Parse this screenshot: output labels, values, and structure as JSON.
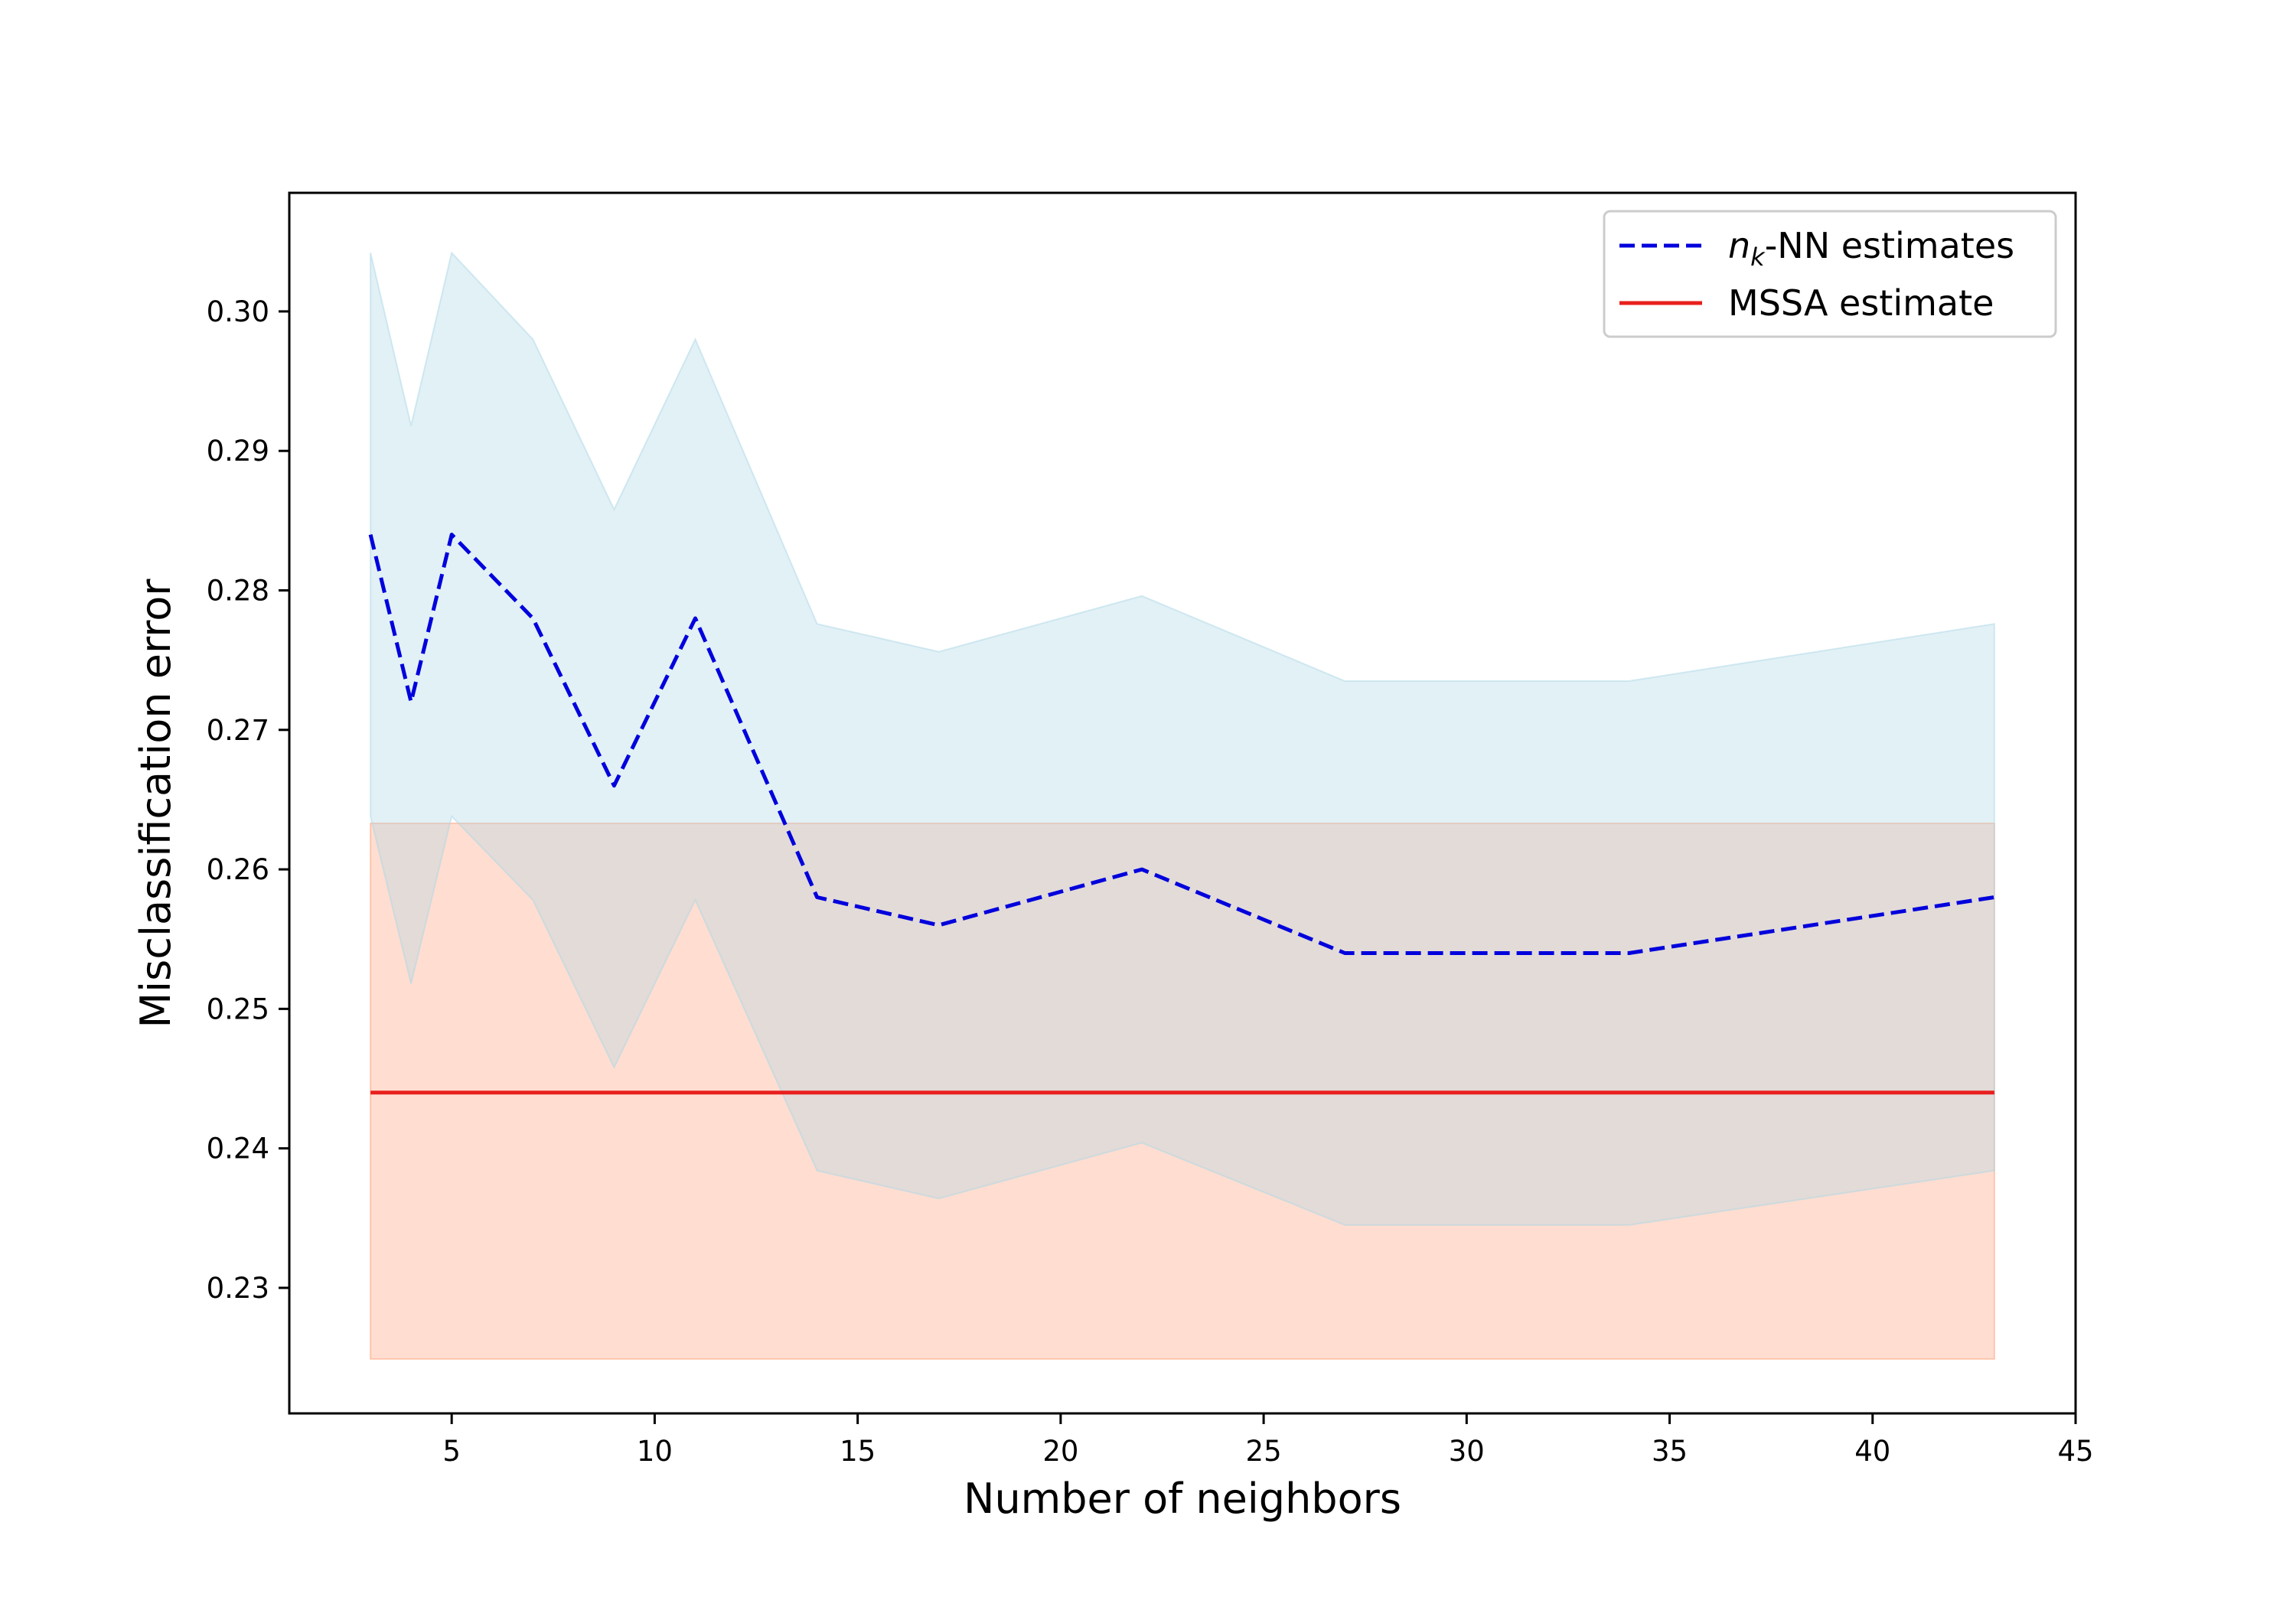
{
  "chart_data": {
    "type": "line",
    "title": "",
    "xlabel": "Number of neighbors",
    "ylabel": "Misclassification error",
    "xlim": [
      1,
      45
    ],
    "ylim": [
      0.221,
      0.3085
    ],
    "xticks": [
      5,
      10,
      15,
      20,
      25,
      30,
      35,
      40,
      45
    ],
    "yticks": [
      0.23,
      0.24,
      0.25,
      0.26,
      0.27,
      0.28,
      0.29,
      0.3
    ],
    "ytick_labels": [
      "0.23",
      "0.24",
      "0.25",
      "0.26",
      "0.27",
      "0.28",
      "0.29",
      "0.30"
    ],
    "grid": false,
    "legend_position": "top-right",
    "x": [
      3,
      4,
      5,
      7,
      9,
      11,
      14,
      17,
      22,
      27,
      34,
      43
    ],
    "series": [
      {
        "name": "n_k-NN estimates",
        "label_main": "n",
        "label_sub": "k",
        "label_rest": "-NN estimates",
        "style": "dashed",
        "color": "#0000dd",
        "values": [
          0.284,
          0.272,
          0.284,
          0.278,
          0.266,
          0.278,
          0.258,
          0.256,
          0.26,
          0.254,
          0.254,
          0.258
        ],
        "band_lower": [
          0.2638,
          0.2518,
          0.2638,
          0.2578,
          0.2458,
          0.2578,
          0.2384,
          0.2364,
          0.2404,
          0.2345,
          0.2345,
          0.2384
        ],
        "band_upper": [
          0.3042,
          0.2918,
          0.3042,
          0.298,
          0.2858,
          0.298,
          0.2776,
          0.2756,
          0.2796,
          0.2735,
          0.2735,
          0.2776
        ],
        "band_color": "#add8e6"
      },
      {
        "name": "MSSA estimate",
        "style": "solid",
        "color": "#e8201e",
        "x": [
          3,
          43
        ],
        "values": [
          0.244,
          0.244
        ],
        "band_lower": [
          0.2249,
          0.2249
        ],
        "band_upper": [
          0.2633,
          0.2633
        ],
        "band_color": "#ffa07a"
      }
    ]
  }
}
